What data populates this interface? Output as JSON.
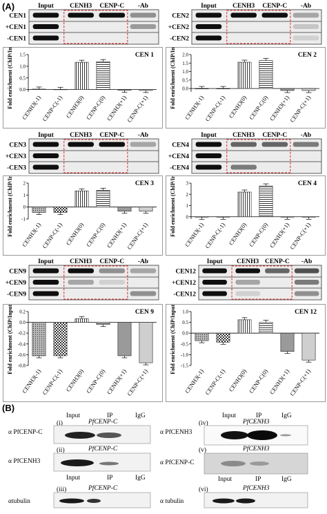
{
  "panel_labels": {
    "a": "(A)",
    "b": "(B)"
  },
  "gel_headers": [
    "Input",
    "CENH3",
    "CENP-C",
    "-Ab"
  ],
  "gels": [
    {
      "id": "cen1",
      "rows": [
        "CEN1",
        "+CEN1",
        "-CEN1"
      ]
    },
    {
      "id": "cen2",
      "rows": [
        "CEN2",
        "+CEN2",
        "-CEN2"
      ]
    },
    {
      "id": "cen3",
      "rows": [
        "CEN3",
        "+CEN3",
        "-CEN3"
      ]
    },
    {
      "id": "cen4",
      "rows": [
        "CEN4",
        "+CEN4",
        "-CEN4"
      ]
    },
    {
      "id": "cen9",
      "rows": [
        "CEN9",
        "+CEN9",
        "-CEN9"
      ]
    },
    {
      "id": "cen12",
      "rows": [
        "CEN12",
        "+CEN12",
        "-CEN12"
      ]
    }
  ],
  "chart_data": [
    {
      "id": "cen1",
      "type": "bar",
      "title": "CEN 1",
      "ylabel": "Fold enrichment (ChIP/Input)",
      "categories": [
        "CENH3(-1)",
        "CENP-C(-1)",
        "CENH3(0)",
        "CENP-C(0)",
        "CENH3(+1)",
        "CENP-C(+1)"
      ],
      "values": [
        0.02,
        0.01,
        1.17,
        1.2,
        -0.03,
        -0.04
      ],
      "ylim": [
        -0.1,
        1.5
      ],
      "ticks": [
        0.0,
        0.5,
        1.0,
        1.5
      ],
      "tick_labels": [
        "0.0",
        "0.5",
        "1.0",
        "1.5"
      ]
    },
    {
      "id": "cen2",
      "type": "bar",
      "title": "CEN 2",
      "ylabel": "Fold enrichment (ChIP/Input)",
      "categories": [
        "CENH3(-1)",
        "CENP-C(-1)",
        "CENH3(0)",
        "CENP-C(0)",
        "CENH3(+1)",
        "CENP-C(+1)"
      ],
      "values": [
        0.0,
        0.0,
        1.55,
        1.65,
        -0.12,
        -0.12
      ],
      "ylim": [
        -0.2,
        2.0
      ],
      "ticks": [
        0.0,
        0.5,
        1.0,
        1.5,
        2.0
      ],
      "tick_labels": [
        "0.0",
        "0.5",
        "1.0",
        "1.5",
        "2.0"
      ]
    },
    {
      "id": "cen3",
      "type": "bar",
      "title": "CEN 3",
      "ylabel": "Fold enrichment (ChIP/Input)",
      "categories": [
        "CENH3(-1)",
        "CENP-C(-1)",
        "CENH3(0)",
        "CENP-C(0)",
        "CENH3(+1)",
        "CENP-C(+1)"
      ],
      "values": [
        -0.45,
        -0.45,
        1.35,
        1.4,
        -0.35,
        -0.35
      ],
      "ylim": [
        -1,
        2
      ],
      "ticks": [
        -1,
        0,
        1,
        2
      ],
      "tick_labels": [
        "-1",
        "0",
        "1",
        "2"
      ]
    },
    {
      "id": "cen4",
      "type": "bar",
      "title": "CEN 4",
      "ylabel": "Fold enrichment (ChIP/Input)",
      "categories": [
        "CENH3(-1)",
        "CENP-C(-1)",
        "CENH3(0)",
        "CENP-C(0)",
        "CENH3(+1)",
        "CENP-C(+1)"
      ],
      "values": [
        -0.03,
        -0.02,
        2.2,
        2.75,
        -0.01,
        -0.01
      ],
      "ylim": [
        -0.2,
        3
      ],
      "ticks": [
        0,
        1,
        2,
        3
      ],
      "tick_labels": [
        "0",
        "1",
        "2",
        "3"
      ]
    },
    {
      "id": "cen9",
      "type": "bar",
      "title": "CEN 9",
      "ylabel": "Fold enrichment (ChIP/Input)",
      "categories": [
        "CENH3(-1)",
        "CENP-C(-1)",
        "CENH3(0)",
        "CENP-C(0)",
        "CENH3(+1)",
        "CENP-C(+1)"
      ],
      "values": [
        -0.62,
        -0.62,
        0.07,
        -0.04,
        -0.62,
        -0.75
      ],
      "ylim": [
        -0.8,
        0.2
      ],
      "ticks": [
        -0.8,
        -0.6,
        -0.4,
        -0.2,
        0.0,
        0.2
      ],
      "tick_labels": [
        "-0.8",
        "-0.6",
        "-0.4",
        "-0.2",
        "0.0",
        "0.2"
      ]
    },
    {
      "id": "cen12",
      "type": "bar",
      "title": "CEN 12",
      "ylabel": "Fold enrichment (ChIP/Input)",
      "categories": [
        "CENH3(-1)",
        "CENP-C(-1)",
        "CENH3(0)",
        "CENP-C(0)",
        "CENH3(+1)",
        "CENP-C(+1)"
      ],
      "values": [
        -0.35,
        -0.42,
        0.62,
        0.5,
        -0.85,
        -1.25
      ],
      "ylim": [
        -1.5,
        1.0
      ],
      "ticks": [
        -1.5,
        -1.0,
        -0.5,
        0.0,
        0.5,
        1.0
      ],
      "tick_labels": [
        "-1.5",
        "-1.0",
        "-0.5",
        "0.0",
        "0.5",
        "1.0"
      ]
    }
  ],
  "western": {
    "i": {
      "label": "(i)",
      "title": "PfCENP-C",
      "antibody": "α PfCENP-C",
      "lanes_top": [
        "Input",
        "IP",
        "IgG"
      ]
    },
    "ii": {
      "label": "(ii)",
      "title": "PfCENP-C",
      "antibody": "α PfCENH3",
      "lanes_bottom": [
        "Input",
        "IP",
        "IgG"
      ]
    },
    "iii": {
      "label": "(iii)",
      "title": "PfCENP-C",
      "antibody": "αtubulin"
    },
    "iv": {
      "label": "(iv)",
      "title": "PfCENH3",
      "antibody": "α PfCENH3",
      "lanes_top": [
        "Input",
        "IP",
        "IgG"
      ]
    },
    "v": {
      "label": "(v)",
      "title": "PfCENH3",
      "antibody": "α PfCENP-C",
      "lanes_bottom": [
        "Input",
        "IP",
        "IgG"
      ]
    },
    "vi": {
      "label": "(vi)",
      "title": "PfCENH3",
      "antibody": "α tubulin"
    }
  }
}
